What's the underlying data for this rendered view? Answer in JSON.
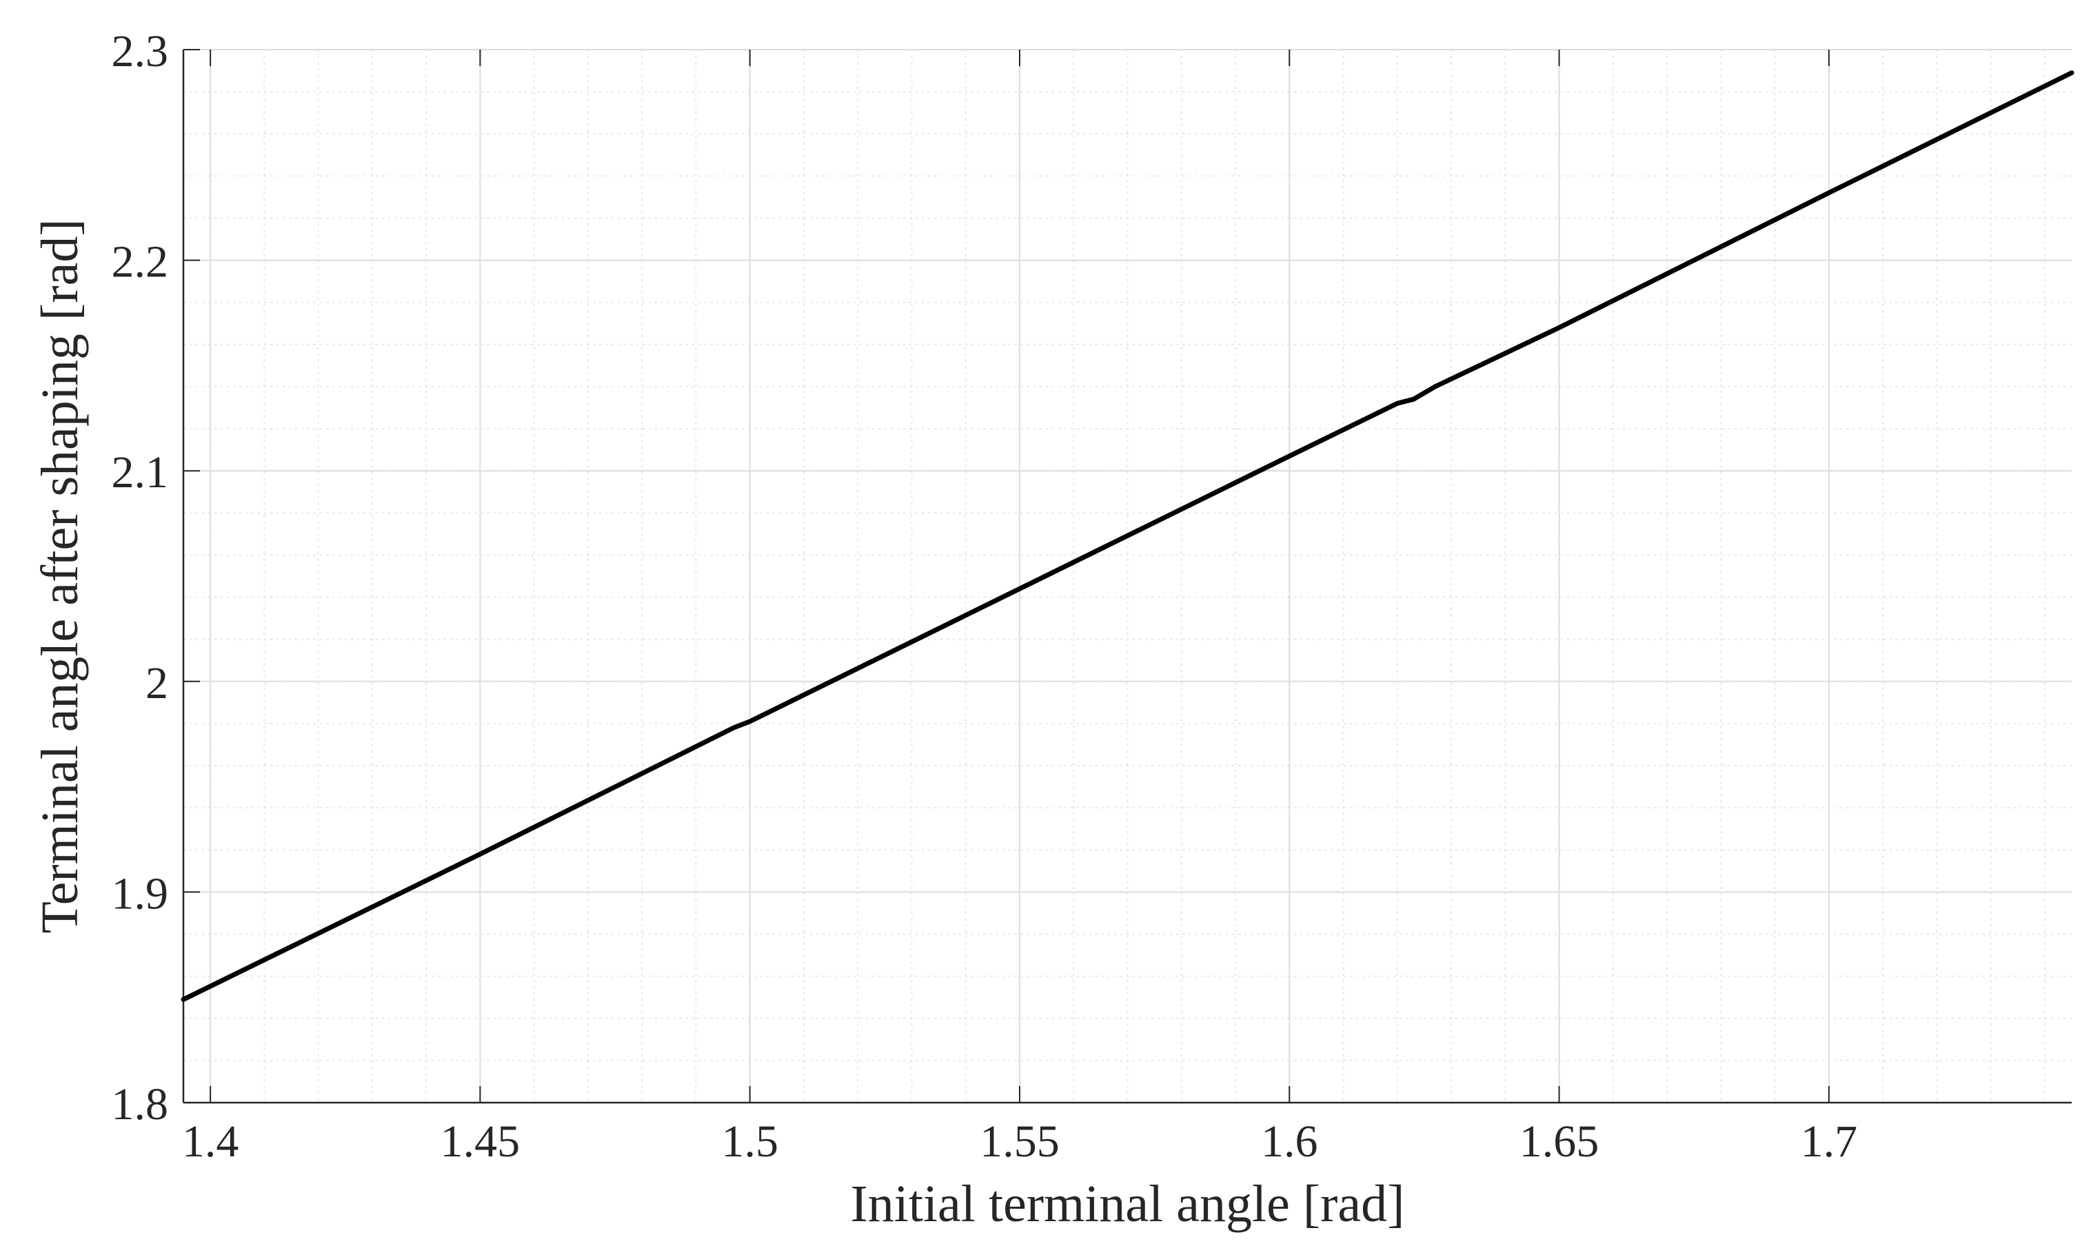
{
  "chart_data": {
    "type": "line",
    "title": "",
    "xlabel": "Initial terminal angle [rad]",
    "ylabel": "Terminal angle after shaping [rad]",
    "xlim": [
      1.395,
      1.745
    ],
    "ylim": [
      1.8,
      2.3
    ],
    "xticks": [
      1.4,
      1.45,
      1.5,
      1.55,
      1.6,
      1.65,
      1.7
    ],
    "xtick_labels": [
      "1.4",
      "1.45",
      "1.5",
      "1.55",
      "1.6",
      "1.65",
      "1.7"
    ],
    "yticks": [
      1.8,
      1.9,
      2.0,
      2.1,
      2.2,
      2.3
    ],
    "ytick_labels": [
      "1.8",
      "1.9",
      "2",
      "2.1",
      "2.2",
      "2.3"
    ],
    "grid": true,
    "minor_grid": true,
    "line_color": "#000000",
    "series": [
      {
        "x": [
          1.395,
          1.45,
          1.497,
          1.5,
          1.55,
          1.6,
          1.62,
          1.623,
          1.627,
          1.65,
          1.7,
          1.745
        ],
        "y": [
          1.849,
          1.918,
          1.978,
          1.981,
          2.044,
          2.107,
          2.132,
          2.134,
          2.14,
          2.168,
          2.232,
          2.289
        ]
      }
    ]
  }
}
